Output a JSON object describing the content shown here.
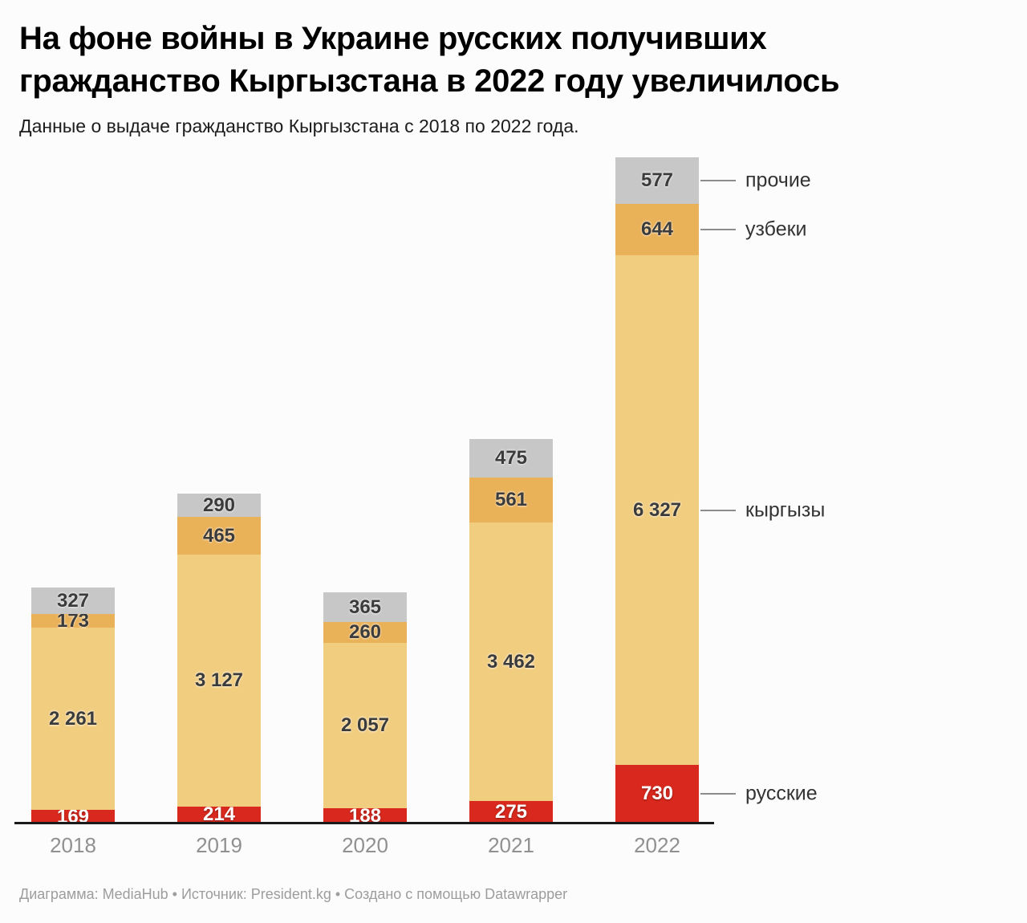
{
  "header": {
    "title_line1": "На фоне войны в Украине русских получивших",
    "title_line2": "гражданство Кыргызстана в 2022 году увеличилось",
    "subtitle": "Данные о выдаче гражданство Кыргызстана с 2018 по 2022 года."
  },
  "footer": {
    "credit": "Диаграмма: MediaHub • Источник: President.kg • Создано с помощью Datawrapper"
  },
  "chart_data": {
    "type": "bar",
    "stacked": true,
    "title": "На фоне войны в Украине русских получивших гражданство Кыргызстана в 2022 году увеличилось",
    "subtitle": "Данные о выдаче гражданство Кыргызстана с 2018 по 2022 года.",
    "categories": [
      "2018",
      "2019",
      "2020",
      "2021",
      "2022"
    ],
    "series": [
      {
        "name": "русские",
        "color": "#d9291e",
        "label_color": "#ffffff",
        "values": [
          169,
          214,
          188,
          275,
          730
        ]
      },
      {
        "name": "кыргызы",
        "color": "#f1cd80",
        "label_color": "#3b3b3b",
        "values": [
          2261,
          3127,
          2057,
          3462,
          6327
        ]
      },
      {
        "name": "узбеки",
        "color": "#e9b158",
        "label_color": "#3b3b3b",
        "values": [
          173,
          465,
          260,
          561,
          644
        ]
      },
      {
        "name": "прочие",
        "color": "#c7c7c7",
        "label_color": "#3b3b3b",
        "values": [
          327,
          290,
          365,
          475,
          577
        ]
      }
    ],
    "totals": [
      2930,
      4096,
      2870,
      4773,
      8278
    ],
    "ylim": [
      0,
      8278
    ],
    "grid": false,
    "value_labels": true,
    "number_format": "space-grouped",
    "legend_position": "right-of-last-bar",
    "legend_order_top_down": [
      "прочие",
      "узбеки",
      "кыргызы",
      "русские"
    ],
    "xlabel": "",
    "ylabel": ""
  }
}
